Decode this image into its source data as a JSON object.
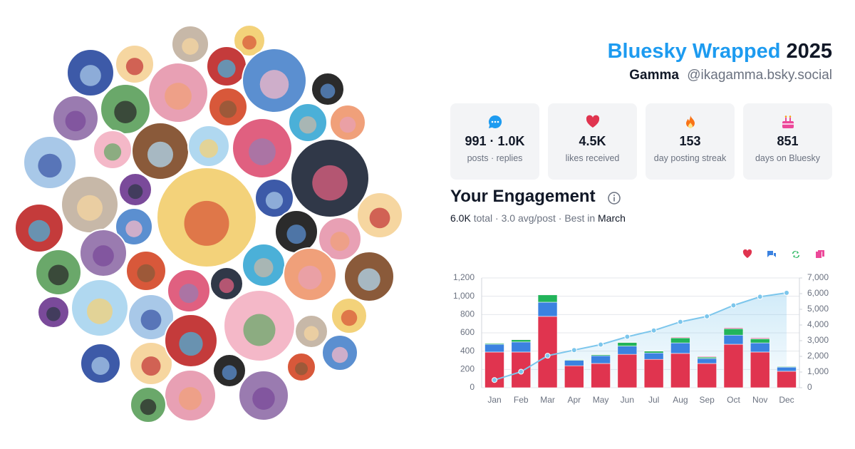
{
  "header": {
    "title": "Bluesky Wrapped",
    "year": "2025",
    "name": "Gamma",
    "handle": "@ikagamma.bsky.social"
  },
  "stats": [
    {
      "value": "991 · 1.0K",
      "label": "posts · replies"
    },
    {
      "value": "4.5K",
      "label": "likes received"
    },
    {
      "value": "153",
      "label": "day posting streak"
    },
    {
      "value": "851",
      "label": "days on Bluesky"
    }
  ],
  "engagement": {
    "title": "Your Engagement",
    "total": "6.0K",
    "summary": "total · 3.0 avg/post · Best in",
    "best": "March"
  },
  "chart_data": {
    "type": "bar",
    "stacked": true,
    "grid": true,
    "categories": [
      "Jan",
      "Feb",
      "Mar",
      "Apr",
      "May",
      "Jun",
      "Jul",
      "Aug",
      "Sep",
      "Oct",
      "Nov",
      "Dec"
    ],
    "series": [
      {
        "color": "#e0344f",
        "values": [
          390,
          390,
          780,
          240,
          265,
          365,
          310,
          375,
          265,
          475,
          390,
          180
        ]
      },
      {
        "color": "#3b82e0",
        "values": [
          85,
          110,
          155,
          60,
          85,
          90,
          70,
          115,
          55,
          100,
          100,
          45
        ]
      },
      {
        "color": "#22b45a",
        "values": [
          10,
          25,
          80,
          8,
          12,
          40,
          20,
          55,
          15,
          70,
          45,
          7
        ]
      },
      {
        "color": "#ec4899",
        "values": [
          3,
          5,
          5,
          2,
          3,
          5,
          5,
          8,
          8,
          10,
          10,
          2
        ]
      },
      {
        "type": "line",
        "axis": "y2",
        "color": "#7cc6ec",
        "values": [
          490,
          1020,
          2040,
          2400,
          2750,
          3250,
          3650,
          4200,
          4550,
          5250,
          5800,
          6050
        ]
      }
    ],
    "ylim": [
      0,
      1200
    ],
    "yticks": [
      0,
      200,
      400,
      600,
      800,
      {
        "value": 1000,
        "label": "1,000"
      },
      {
        "value": 1200,
        "label": "1,200"
      }
    ],
    "y2lim": [
      0,
      7000
    ],
    "y2ticks": [
      0,
      {
        "value": 1000,
        "label": "1,000"
      },
      {
        "value": 2000,
        "label": "2,000"
      },
      {
        "value": 3000,
        "label": "3,000"
      },
      {
        "value": 4000,
        "label": "4,000"
      },
      {
        "value": 5000,
        "label": "5,000"
      },
      {
        "value": 6000,
        "label": "6,000"
      },
      {
        "value": 7000,
        "label": "7,000"
      }
    ]
  }
}
